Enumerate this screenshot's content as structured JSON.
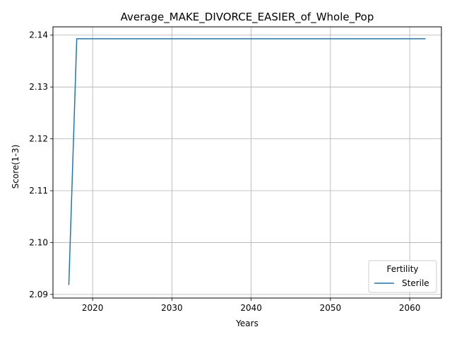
{
  "chart_data": {
    "type": "line",
    "title": "Average_MAKE_DIVORCE_EASIER_of_Whole_Pop",
    "xlabel": "Years",
    "ylabel": "Score(1-3)",
    "xlim": [
      2015,
      2064
    ],
    "ylim": [
      2.0893,
      2.1416
    ],
    "x_ticks": [
      "2020",
      "2030",
      "2040",
      "2050",
      "2060"
    ],
    "y_ticks": [
      "2.09",
      "2.10",
      "2.11",
      "2.12",
      "2.13",
      "2.14"
    ],
    "grid": true,
    "legend": {
      "title": "Fertility",
      "placement": "lower right"
    },
    "series": [
      {
        "name": "Sterile",
        "color": "#1f77b4",
        "x": [
          2017,
          2018,
          2019,
          2020,
          2021,
          2022,
          2023,
          2024,
          2025,
          2026,
          2027,
          2028,
          2029,
          2030,
          2031,
          2032,
          2033,
          2034,
          2035,
          2036,
          2037,
          2038,
          2039,
          2040,
          2041,
          2042,
          2043,
          2044,
          2045,
          2046,
          2047,
          2048,
          2049,
          2050,
          2051,
          2052,
          2053,
          2054,
          2055,
          2056,
          2057,
          2058,
          2059,
          2060,
          2061,
          2062
        ],
        "y": [
          2.0918,
          2.1393,
          2.1393,
          2.1393,
          2.1393,
          2.1393,
          2.1393,
          2.1393,
          2.1393,
          2.1393,
          2.1393,
          2.1393,
          2.1393,
          2.1393,
          2.1393,
          2.1393,
          2.1393,
          2.1393,
          2.1393,
          2.1393,
          2.1393,
          2.1393,
          2.1393,
          2.1393,
          2.1393,
          2.1393,
          2.1393,
          2.1393,
          2.1393,
          2.1393,
          2.1393,
          2.1393,
          2.1393,
          2.1393,
          2.1393,
          2.1393,
          2.1393,
          2.1393,
          2.1393,
          2.1393,
          2.1393,
          2.1393,
          2.1393,
          2.1393,
          2.1393,
          2.1393
        ]
      }
    ]
  }
}
